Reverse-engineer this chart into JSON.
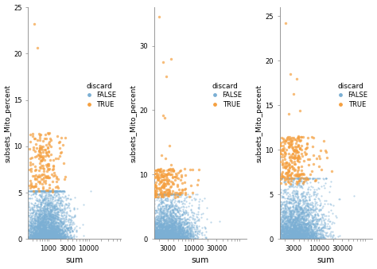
{
  "color_false": "#7bafd4",
  "color_true": "#f5a040",
  "alpha_false": 0.5,
  "alpha_true": 0.7,
  "point_size_false": 2.5,
  "point_size_true": 6,
  "legend_title": "discard",
  "background_color": "#ffffff",
  "seed": 12345,
  "panels": [
    {
      "xlim_log": [
        2.5,
        4.8
      ],
      "ylim": [
        0,
        25
      ],
      "yticks": [
        0,
        5,
        10,
        15,
        20,
        25
      ],
      "xticks": [
        1000,
        3000,
        10000
      ],
      "xtick_labels": [
        "1000",
        "3000",
        "10000"
      ],
      "x_center_log": 2.95,
      "x_sigma": 0.28,
      "n_false": 3200,
      "n_true": 200,
      "y_false_scale": 1.8,
      "y_false_max": 5.2,
      "y_true_min": 5.0,
      "y_true_max": 11.5,
      "outliers_x_log": [
        2.65,
        2.72,
        2.78,
        2.68,
        2.82,
        2.75,
        2.9,
        2.95,
        3.0,
        2.85
      ],
      "outliers_y": [
        23.2,
        20.6,
        10.9,
        10.2,
        9.8,
        9.1,
        8.5,
        8.0,
        7.5,
        7.0
      ]
    },
    {
      "xlim_log": [
        3.2,
        5.1
      ],
      "ylim": [
        0,
        36
      ],
      "yticks": [
        0,
        10,
        20,
        30
      ],
      "xticks": [
        3000,
        10000,
        30000
      ],
      "xtick_labels": [
        "3000",
        "10000",
        "30000"
      ],
      "x_center_log": 3.45,
      "x_sigma": 0.28,
      "n_false": 3200,
      "n_true": 280,
      "y_false_scale": 2.0,
      "y_false_max": 7.0,
      "y_true_min": 6.5,
      "y_true_max": 11.0,
      "outliers_x_log": [
        3.3,
        3.38,
        3.45,
        3.55,
        3.42,
        3.38,
        3.52,
        3.36,
        3.6,
        3.44,
        3.55,
        3.48
      ],
      "outliers_y": [
        34.5,
        27.5,
        25.2,
        28.0,
        18.8,
        19.2,
        14.5,
        13.0,
        8.5,
        12.5,
        11.5,
        10.0
      ]
    },
    {
      "xlim_log": [
        3.2,
        5.1
      ],
      "ylim": [
        0,
        26
      ],
      "yticks": [
        0,
        5,
        10,
        15,
        20,
        25
      ],
      "xticks": [
        3000,
        10000,
        30000
      ],
      "xtick_labels": [
        "3000",
        "10000",
        "30000"
      ],
      "x_center_log": 3.52,
      "x_sigma": 0.3,
      "n_false": 3200,
      "n_true": 320,
      "y_false_scale": 2.0,
      "y_false_max": 6.8,
      "y_true_min": 6.2,
      "y_true_max": 11.5,
      "outliers_x_log": [
        3.32,
        3.42,
        3.55,
        3.48,
        3.62,
        3.38,
        3.5,
        3.7,
        3.45,
        3.58,
        3.65,
        3.72
      ],
      "outliers_y": [
        24.2,
        18.5,
        18.0,
        16.3,
        14.4,
        14.0,
        11.2,
        8.8,
        11.0,
        10.5,
        10.0,
        9.5
      ]
    }
  ]
}
